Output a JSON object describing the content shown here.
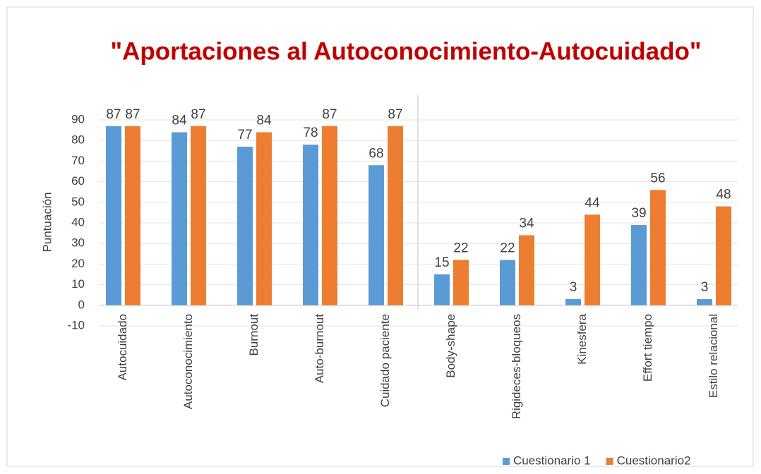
{
  "chart_data": {
    "type": "bar",
    "title": "\"Aportaciones al Autoconocimiento-Autocuidado\"",
    "ylabel": "Puntuación",
    "categories": [
      "Autocuidado",
      "Autoconocimiento",
      "Burnout",
      "Auto-burnout",
      "Cuidado paciente",
      "Body-shape",
      "Rigideces-bloqueos",
      "Kinesfera",
      "Effort tiempo",
      "Estilo relacional"
    ],
    "series": [
      {
        "name": "Cuestionario 1",
        "color": "#5b9bd5",
        "values": [
          87,
          84,
          77,
          78,
          68,
          15,
          22,
          3,
          39,
          3
        ]
      },
      {
        "name": "Cuestionario2",
        "color": "#ed7d31",
        "values": [
          87,
          87,
          84,
          87,
          87,
          22,
          34,
          44,
          56,
          48
        ]
      }
    ],
    "ylim": [
      -10,
      90
    ],
    "yticks": [
      -10,
      0,
      10,
      20,
      30,
      40,
      50,
      60,
      70,
      80,
      90
    ],
    "grid": true,
    "legend": "bottom-right"
  }
}
